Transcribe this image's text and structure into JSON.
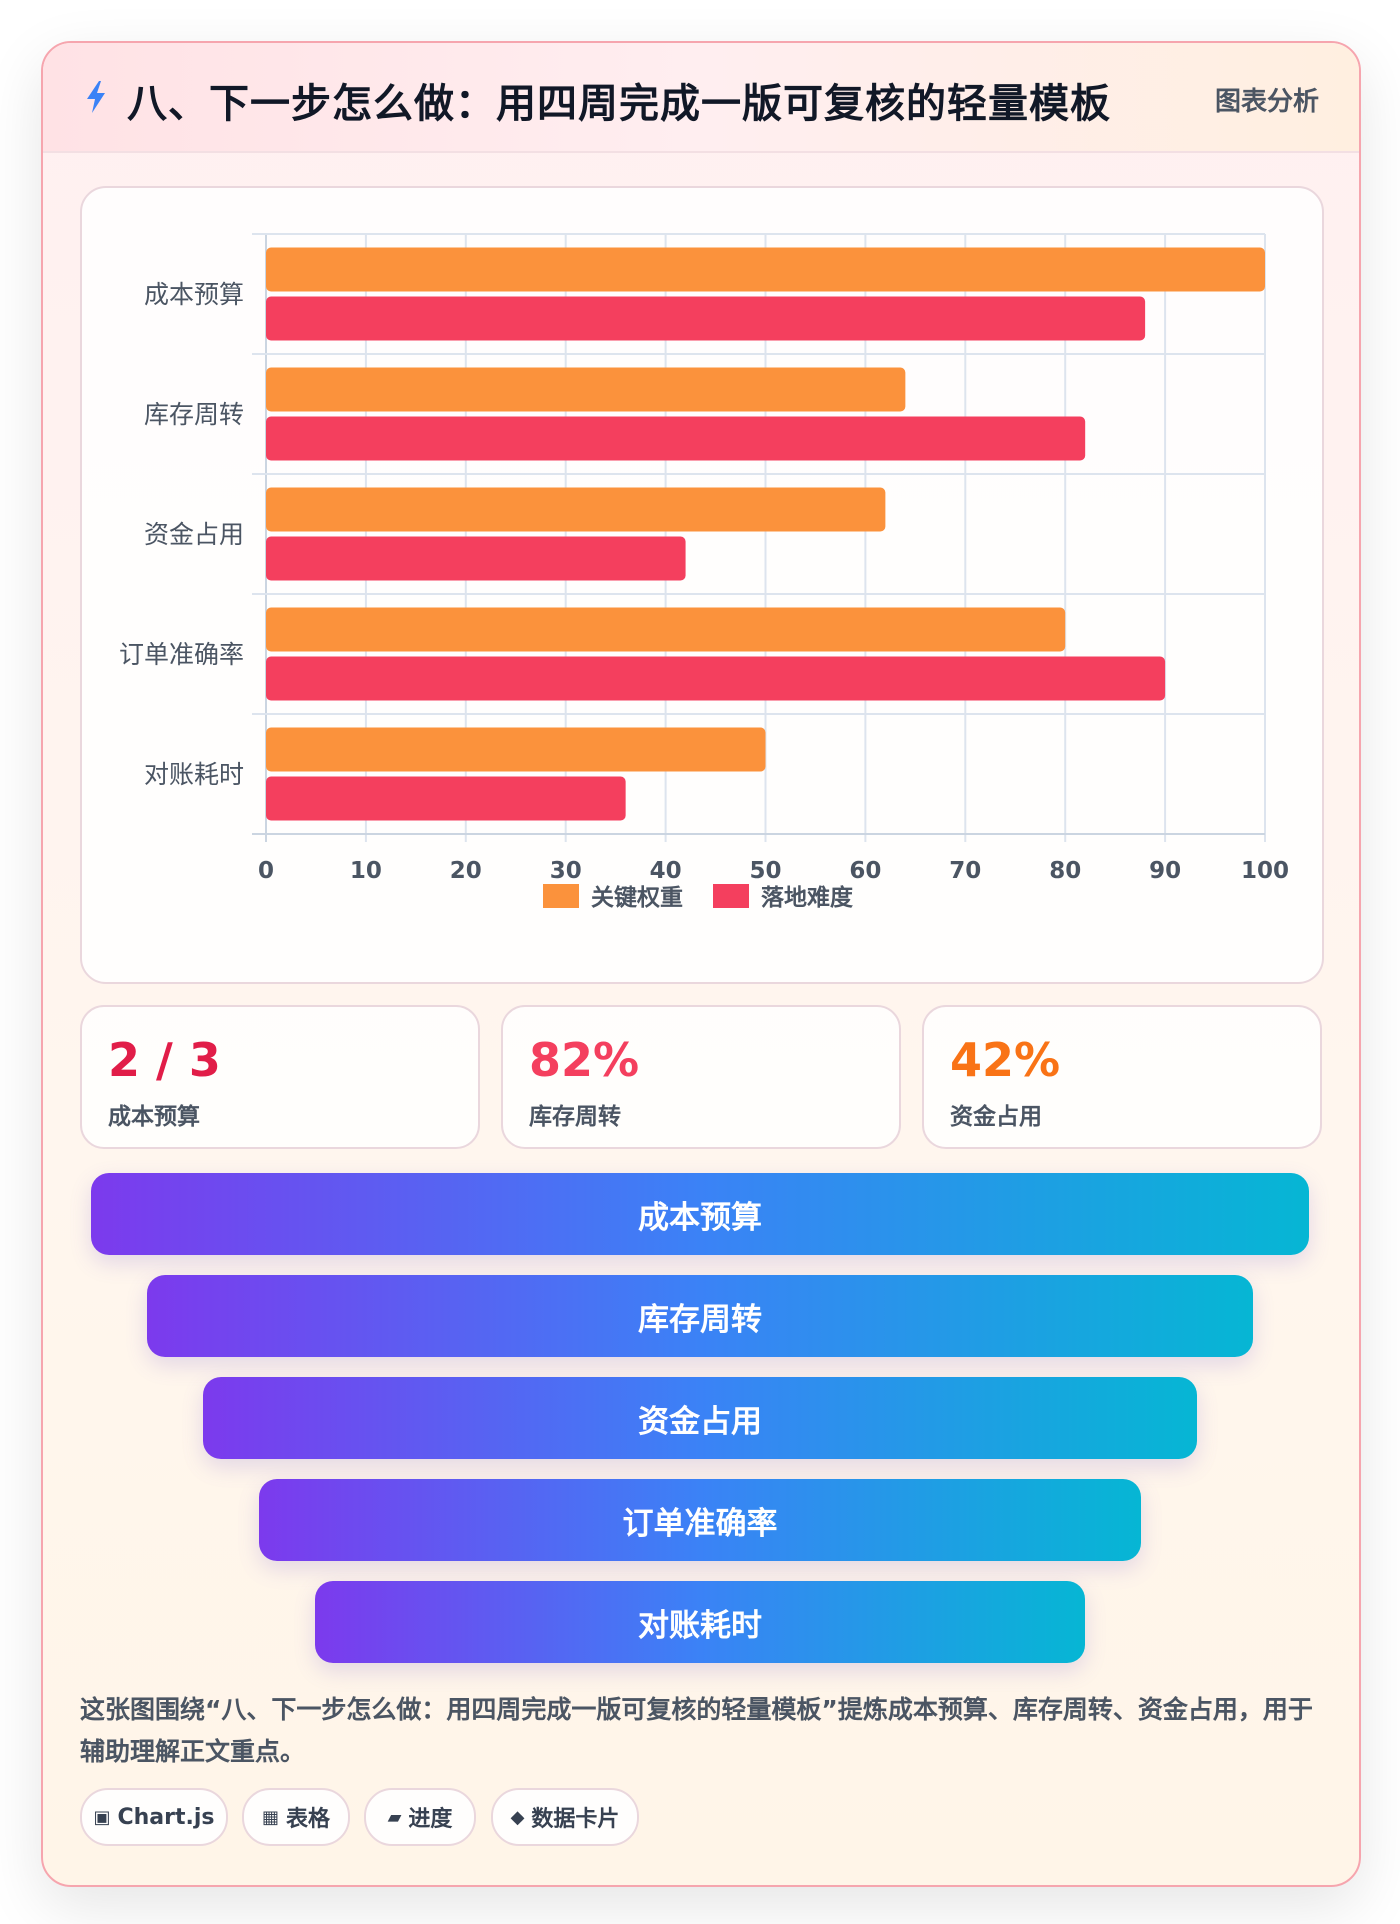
{
  "header": {
    "title": "八、下一步怎么做：用四周完成一版可复核的轻量模板",
    "tag": "图表分析",
    "icon": "lightning-icon"
  },
  "chart_data": {
    "type": "bar",
    "orientation": "horizontal",
    "categories": [
      "成本预算",
      "库存周转",
      "资金占用",
      "订单准确率",
      "对账耗时"
    ],
    "series": [
      {
        "name": "关键权重",
        "color": "#fb923c",
        "values": [
          100,
          64,
          62,
          80,
          50
        ]
      },
      {
        "name": "落地难度",
        "color": "#f43f5e",
        "values": [
          88,
          82,
          42,
          90,
          36
        ]
      }
    ],
    "xlim": [
      0,
      100
    ],
    "xticks": [
      "0",
      "10",
      "20",
      "30",
      "40",
      "50",
      "60",
      "70",
      "80",
      "90",
      "100"
    ],
    "grid": true,
    "legend": "bottom-center"
  },
  "stats": [
    {
      "value": "2 / 3",
      "label": "成本预算",
      "color": "#e11d48"
    },
    {
      "value": "82%",
      "label": "库存周转",
      "color": "#f43f5e"
    },
    {
      "value": "42%",
      "label": "资金占用",
      "color": "#f97316"
    }
  ],
  "funnel": [
    "成本预算",
    "库存周转",
    "资金占用",
    "订单准确率",
    "对账耗时"
  ],
  "description": "这张图围绕“八、下一步怎么做：用四周完成一版可复核的轻量模板”提炼成本预算、库存周转、资金占用，用于辅助理解正文重点。",
  "chips": [
    {
      "icon": "▣",
      "icon_name": "chart-icon",
      "label": "Chart.js"
    },
    {
      "icon": "▦",
      "icon_name": "table-icon",
      "label": "表格"
    },
    {
      "icon": "▰",
      "icon_name": "progress-icon",
      "label": "进度"
    },
    {
      "icon": "◆",
      "icon_name": "diamond-icon",
      "label": "数据卡片"
    }
  ]
}
